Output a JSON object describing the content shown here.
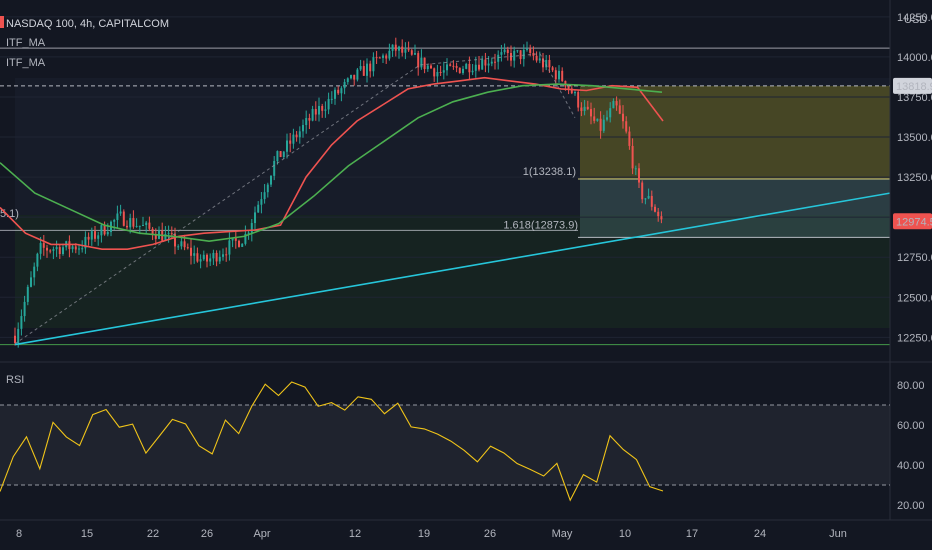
{
  "header": {
    "title": "NASDAQ 100, 4h, CAPITALCOM",
    "indicators": [
      "ITF_MA",
      "ITF_MA"
    ],
    "currency": "USD"
  },
  "rsi_panel": {
    "label": "RSI"
  },
  "colors": {
    "background": "#131722",
    "candle_up": "#26a69a",
    "candle_down": "#ef5350",
    "ma_red": "#ef5350",
    "ma_green": "#4caf50",
    "trendline": "#26c6da",
    "rsi_line": "#f0c419",
    "fib_zone": "#6e6a22",
    "price_badge": "#ef5350"
  },
  "chart_data": [
    {
      "type": "candlestick",
      "title": "NASDAQ 100, 4h, CAPITALCOM",
      "x_tick_labels": [
        "8",
        "15",
        "22",
        "26",
        "Apr",
        "12",
        "19",
        "26",
        "May",
        "10",
        "17",
        "24",
        "Jun"
      ],
      "y_ticks": [
        12250,
        12500,
        12750,
        13000,
        13250,
        13500,
        13750,
        14000,
        14250
      ],
      "y_tick_labels": [
        "12250.0",
        "12500.0",
        "12750.0",
        "13000.0",
        "13250.0",
        "13500.0",
        "13750.0",
        "14000.0",
        "14250.0"
      ],
      "ylim": [
        12140,
        14330
      ],
      "last_price": 12974.5,
      "last_price_label": "12974.5",
      "level_price_label": "13818.9",
      "levels": [
        {
          "value": 14055,
          "style": "solid"
        },
        {
          "value": 13818.9,
          "style": "dashed"
        },
        {
          "value": 13238.1,
          "style": "solid",
          "label": "1(13238.1)"
        },
        {
          "value": 12873.9,
          "style": "solid",
          "label": "1.618(12873.9)"
        },
        {
          "value": 12205,
          "style": "solid"
        }
      ],
      "left_clipped_labels": [
        "5.1)"
      ],
      "series": [
        {
          "name": "ITF_MA",
          "color": "red",
          "values": [
            13060,
            12900,
            12830,
            12830,
            12800,
            12800,
            12830,
            12880,
            12900,
            12910,
            12920,
            12950,
            13250,
            13450,
            13600,
            13700,
            13800,
            13830,
            13850,
            13870,
            13850,
            13830,
            13800,
            13790,
            13820,
            13810,
            13600
          ]
        },
        {
          "name": "ITF_MA",
          "color": "green",
          "values": [
            13340,
            13150,
            13050,
            12950,
            12900,
            12880,
            12850,
            12880,
            12960,
            13130,
            13320,
            13470,
            13620,
            13720,
            13780,
            13820,
            13830,
            13820,
            13800,
            13780
          ]
        },
        {
          "name": "",
          "color": "cyan",
          "points": [
            [
              0,
              12205
            ],
            [
              80,
              13150
            ]
          ]
        },
        {
          "name": "RSI",
          "ylim": [
            15,
            90
          ],
          "y_ticks": [
            "20.00",
            "40.00",
            "60.00",
            "80.00"
          ],
          "band": [
            30,
            70
          ],
          "values": [
            27,
            45,
            55,
            38,
            62,
            55,
            50,
            65,
            68,
            58,
            60,
            45,
            55,
            62,
            60,
            50,
            45,
            62,
            55,
            70,
            80,
            75,
            82,
            78,
            70,
            72,
            68,
            75,
            72,
            65,
            70,
            60,
            58,
            55,
            52,
            48,
            42,
            50,
            45,
            40,
            38,
            35,
            40,
            22,
            35,
            32,
            55,
            48,
            42,
            30,
            28
          ]
        }
      ]
    }
  ]
}
